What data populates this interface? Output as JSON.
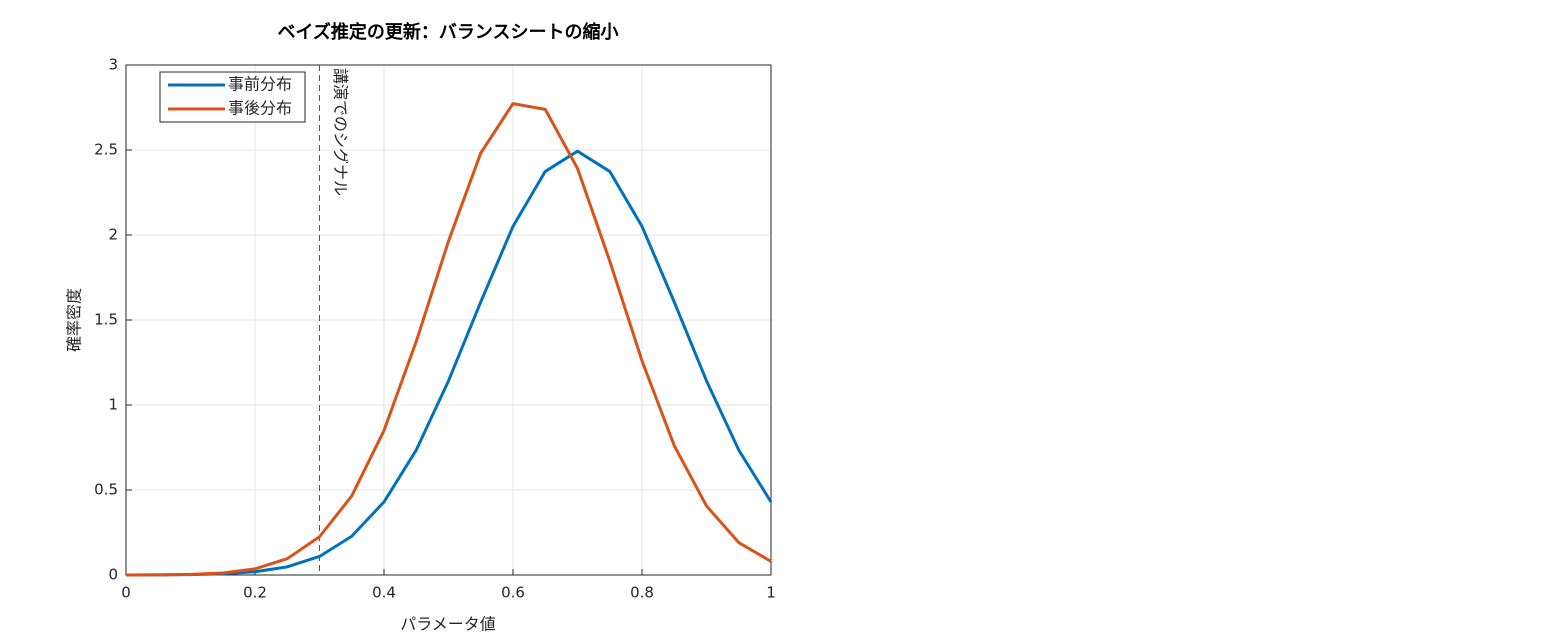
{
  "chart_data": {
    "type": "line",
    "title": "ベイズ推定の更新：バランスシートの縮小",
    "x_label": "パラメータ値",
    "y_label": "確率密度",
    "x": [
      0,
      0.05,
      0.1,
      0.15,
      0.2,
      0.25,
      0.3,
      0.35,
      0.4,
      0.45,
      0.5,
      0.55,
      0.6,
      0.65,
      0.7,
      0.75,
      0.8,
      0.85,
      0.9,
      0.95,
      1
    ],
    "series": [
      {
        "name": "事前分布",
        "color": "#0072bd",
        "values": [
          0.0,
          0.001,
          0.002,
          0.007,
          0.019,
          0.048,
          0.109,
          0.228,
          0.43,
          0.735,
          1.142,
          1.606,
          2.051,
          2.374,
          2.493,
          2.374,
          2.051,
          1.606,
          1.142,
          0.735,
          0.43
        ]
      },
      {
        "name": "事後分布",
        "color": "#d95319",
        "values": [
          0.0,
          0.001,
          0.004,
          0.012,
          0.036,
          0.096,
          0.225,
          0.465,
          0.85,
          1.374,
          1.964,
          2.482,
          2.773,
          2.739,
          2.392,
          1.847,
          1.26,
          0.761,
          0.406,
          0.191,
          0.08
        ]
      }
    ],
    "xlim": [
      0,
      1
    ],
    "xticks": [
      0,
      0.2,
      0.4,
      0.6,
      0.8,
      1
    ],
    "ylim": [
      0,
      3
    ],
    "yticks": [
      0,
      0.5,
      1,
      1.5,
      2,
      2.5,
      3
    ],
    "grid": true,
    "legend": "northwest",
    "vline": {
      "x": 0.3,
      "label": "講演でのシグナル"
    }
  }
}
